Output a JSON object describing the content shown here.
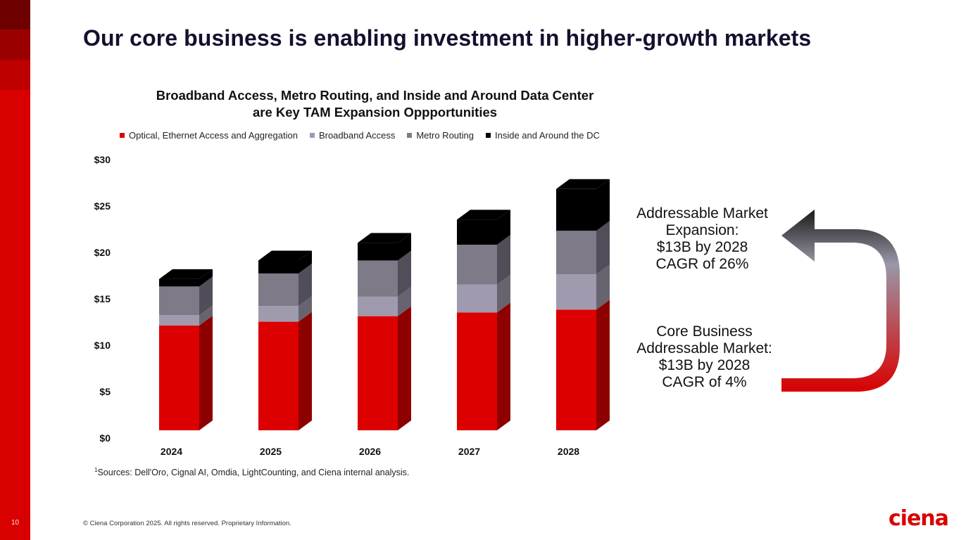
{
  "slide": {
    "title": "Our core business is enabling investment in higher-growth markets",
    "page_number": "10",
    "copyright": "© Ciena Corporation 2025. All rights reserved. Proprietary Information.",
    "logo_text": "ciena",
    "sidebar_colors": [
      "#6e0000",
      "#9a0000",
      "#be0000",
      "#d90000"
    ]
  },
  "callouts": {
    "expansion": [
      "Addressable Market",
      "Expansion:",
      "$13B by 2028",
      "CAGR of 26%"
    ],
    "core": [
      "Core Business",
      "Addressable Market:",
      "$13B by 2028",
      "CAGR of 4%"
    ],
    "arrow_gradient": [
      "#1a1a1a",
      "#9a98a8",
      "#d90000"
    ]
  },
  "footnote": {
    "marker": "1",
    "text": "Sources: Dell'Oro, Cignal AI, Omdia, LightCounting, and Ciena internal analysis."
  },
  "chart_data": {
    "type": "bar",
    "stacked": true,
    "style": "3d-column",
    "title_lines": [
      "Broadband Access, Metro Routing, and Inside and Around Data Center",
      "are Key TAM Expansion Oppportunities"
    ],
    "xlabel": "",
    "ylabel": "",
    "categories": [
      "2024",
      "2025",
      "2026",
      "2027",
      "2028"
    ],
    "yticks": [
      "$0",
      "$5",
      "$10",
      "$15",
      "$20",
      "$25",
      "$30"
    ],
    "ytick_values": [
      0,
      5,
      10,
      15,
      20,
      25,
      30
    ],
    "ylim": [
      0,
      30
    ],
    "grid": false,
    "legend_position": "top",
    "series": [
      {
        "name": "Optical, Ethernet Access and Aggregation",
        "color": "#dc0000",
        "side_color": "#8e0000",
        "values": [
          11.3,
          11.7,
          12.3,
          12.7,
          13.0
        ]
      },
      {
        "name": "Broadband Access",
        "color": "#a09aae",
        "side_color": "#68646f",
        "values": [
          1.1,
          1.7,
          2.1,
          3.0,
          3.8
        ]
      },
      {
        "name": "Metro Routing",
        "color": "#7e7a88",
        "side_color": "#514e59",
        "values": [
          3.1,
          3.5,
          3.9,
          4.3,
          4.7
        ]
      },
      {
        "name": "Inside and Around the DC",
        "color": "#000000",
        "side_color": "#000000",
        "values": [
          0.8,
          1.4,
          1.9,
          2.7,
          4.5
        ]
      }
    ]
  }
}
